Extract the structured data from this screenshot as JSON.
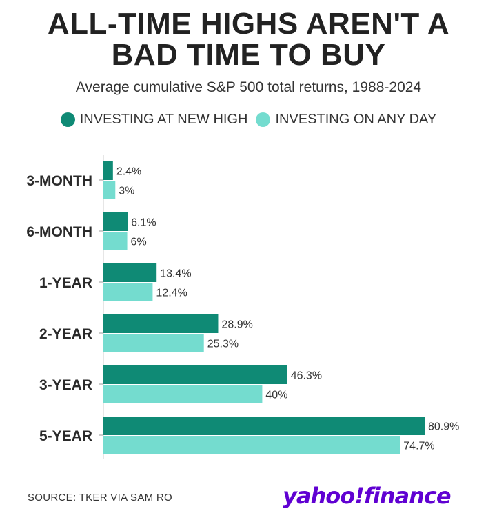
{
  "header": {
    "title_line1": "ALL-TIME HIGHS AREN'T A",
    "title_line2": "BAD TIME TO BUY",
    "subtitle": "Average cumulative S&P 500 total returns, 1988-2024"
  },
  "footer": {
    "source": "SOURCE: TKER VIA SAM RO",
    "logo_text": "yahoo!finance"
  },
  "colors": {
    "new_high": "#0f8a75",
    "any_day": "#74dccf",
    "logo": "#6001d2"
  },
  "chart_data": {
    "type": "bar",
    "orientation": "horizontal",
    "categories": [
      "3-MONTH",
      "6-MONTH",
      "1-YEAR",
      "2-YEAR",
      "3-YEAR",
      "5-YEAR"
    ],
    "series": [
      {
        "name": "INVESTING AT NEW HIGH",
        "values": [
          2.4,
          6.1,
          13.4,
          28.9,
          46.3,
          80.9
        ],
        "labels": [
          "2.4%",
          "6.1%",
          "13.4%",
          "28.9%",
          "46.3%",
          "80.9%"
        ]
      },
      {
        "name": "INVESTING ON ANY DAY",
        "values": [
          3,
          6,
          12.4,
          25.3,
          40,
          74.7
        ],
        "labels": [
          "3%",
          "6%",
          "12.4%",
          "25.3%",
          "40%",
          "74.7%"
        ]
      }
    ],
    "xlim": [
      0,
      85
    ],
    "unit": "%",
    "legend": "top-center",
    "grid": false
  }
}
